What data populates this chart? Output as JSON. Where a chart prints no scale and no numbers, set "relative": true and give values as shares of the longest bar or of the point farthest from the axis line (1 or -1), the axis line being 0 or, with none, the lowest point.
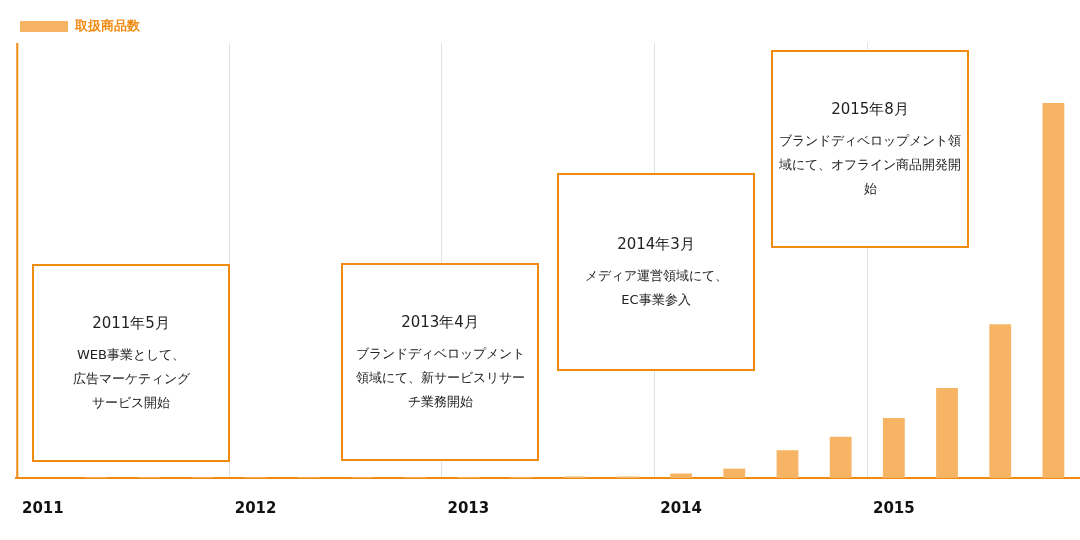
{
  "chart_data": {
    "type": "bar",
    "relative": true,
    "categories": [
      "2011",
      null,
      null,
      null,
      "2012",
      null,
      null,
      null,
      "2013",
      null,
      null,
      null,
      "2014",
      null,
      null,
      null,
      "2015",
      null,
      null,
      null
    ],
    "series": [
      {
        "name": "取扱商品数",
        "color": "#f6b464",
        "values": [
          null,
          0.002,
          0.002,
          0.002,
          0.002,
          0.002,
          0.002,
          0.002,
          0.003,
          0.003,
          0.004,
          0.004,
          0.012,
          0.025,
          0.074,
          0.11,
          0.16,
          0.24,
          0.41,
          1
        ]
      }
    ],
    "legend": "top left",
    "grid": "x",
    "annotations": [
      "2011年5月",
      "WEB事業として、広告マーケティングサービス開始",
      "2013年4月",
      "ブランドディベロップメント領域にて、新サービスリサーチ業務開始",
      "2014年3月",
      "メディア運営領域にて、EC事業参入",
      "2015年8月",
      "ブランドディベロップメント領域にて、オフライン商品開発開始"
    ]
  }
}
